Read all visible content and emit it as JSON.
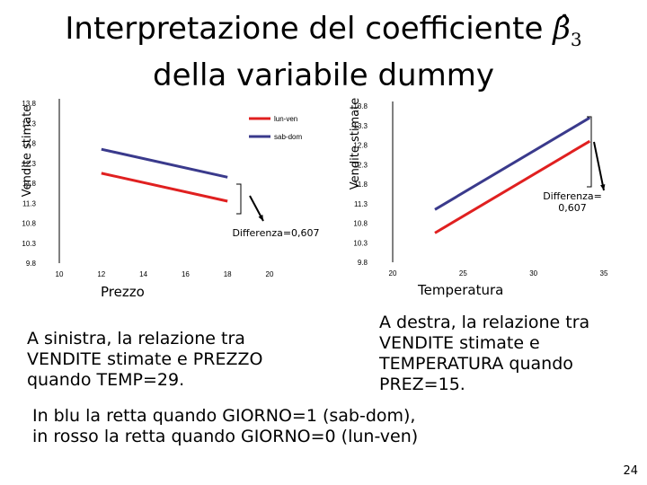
{
  "title": {
    "line1": "Interpretazione del coefficiente",
    "beta_symbol": "β̂",
    "beta_sub": "3",
    "line2": "della variabile dummy"
  },
  "chart_data": [
    {
      "type": "line",
      "xlabel": "Prezzo",
      "ylabel": "Vendite stimate",
      "x_ticks": [
        "10",
        "12",
        "14",
        "16",
        "18",
        "20"
      ],
      "y_ticks": [
        "9.8",
        "10.3",
        "10.8",
        "11.3",
        "11.8",
        "12.3",
        "12.8",
        "13.3",
        "13.8"
      ],
      "xlim": [
        10,
        20
      ],
      "ylim": [
        9.8,
        13.8
      ],
      "legend": [
        "lun-ven",
        "sab-dom"
      ],
      "series": [
        {
          "name": "lun-ven",
          "color": "#e02020",
          "x": [
            12,
            18
          ],
          "y": [
            12.05,
            11.35
          ]
        },
        {
          "name": "sab-dom",
          "color": "#3a3a8c",
          "x": [
            12,
            18
          ],
          "y": [
            12.65,
            11.95
          ]
        }
      ],
      "annotation": "Differenza=0,607"
    },
    {
      "type": "line",
      "xlabel": "Temperatura",
      "ylabel": "Vendite stimate",
      "x_ticks": [
        "20",
        "25",
        "30",
        "35"
      ],
      "y_ticks": [
        "9.8",
        "10.3",
        "10.8",
        "11.3",
        "11.8",
        "12.3",
        "12.8",
        "13.3",
        "13.8"
      ],
      "xlim": [
        20,
        35
      ],
      "ylim": [
        9.8,
        13.8
      ],
      "series": [
        {
          "name": "",
          "color": "#e02020",
          "x": [
            23,
            34
          ],
          "y": [
            10.55,
            12.9
          ]
        },
        {
          "name": "",
          "color": "#3a3a8c",
          "x": [
            23,
            34
          ],
          "y": [
            11.15,
            13.5
          ]
        }
      ],
      "annotation": "Differenza=\n0,607"
    }
  ],
  "text": {
    "left_caption": "A sinistra, la relazione tra\nVENDITE stimate e PREZZO\nquando TEMP=29.",
    "right_caption": "A destra, la relazione tra\nVENDITE stimate e\nTEMPERATURA quando\nPREZ=15.",
    "bottom_caption": "In blu la retta quando GIORNO=1 (sab-dom),\nin rosso la retta quando GIORNO=0 (lun-ven)",
    "page_number": "24"
  }
}
